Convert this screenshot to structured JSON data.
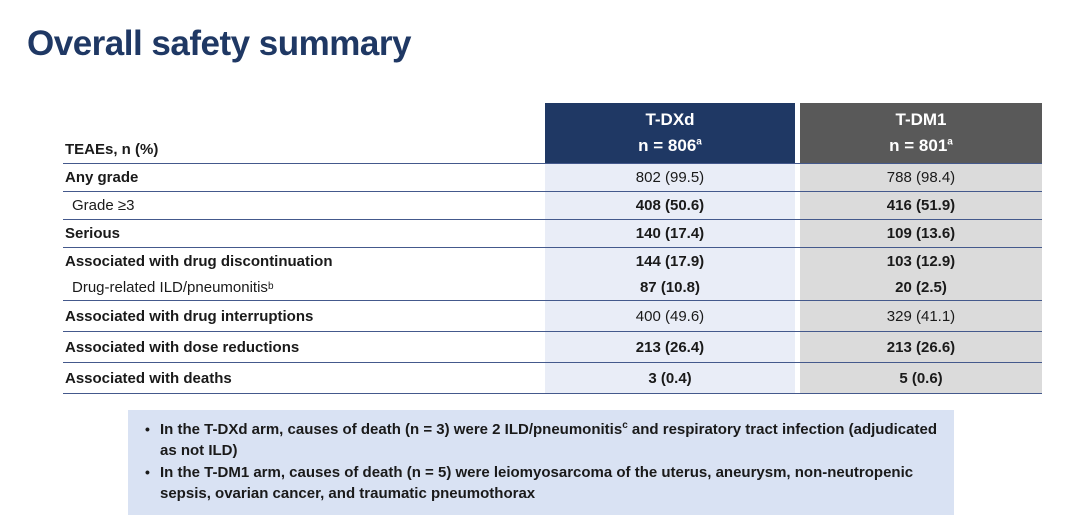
{
  "slide": {
    "title": "Overall safety summary"
  },
  "table": {
    "corner_label": "TEAEs, n (%)",
    "columns": [
      {
        "name": "T-DXd",
        "n": "n = 806",
        "n_sup": "a",
        "header_bg": "#1F3864",
        "cell_bg": "#E9EDF7"
      },
      {
        "name": "T-DM1",
        "n": "n = 801",
        "n_sup": "a",
        "header_bg": "#595959",
        "cell_bg": "#DBDBDB"
      }
    ],
    "rows": [
      {
        "label": "Any grade",
        "label_sup": "",
        "tdxd": "802 (99.5)",
        "tdm1": "788 (98.4)"
      },
      {
        "label": "Grade ≥3",
        "label_sup": "",
        "tdxd": "408 (50.6)",
        "tdm1": "416 (51.9)"
      },
      {
        "label": "Serious",
        "label_sup": "",
        "tdxd": "140 (17.4)",
        "tdm1": "109 (13.6)"
      },
      {
        "label": "Associated with drug discontinuation",
        "label_sup": "",
        "tdxd": "144 (17.9)",
        "tdm1": "103 (12.9)"
      },
      {
        "label": "Drug-related ILD/pneumonitis",
        "label_sup": "b",
        "tdxd": "87 (10.8)",
        "tdm1": "20 (2.5)"
      },
      {
        "label": "Associated with drug interruptions",
        "label_sup": "",
        "tdxd": "400 (49.6)",
        "tdm1": "329 (41.1)"
      },
      {
        "label": "Associated with dose reductions",
        "label_sup": "",
        "tdxd": "213 (26.4)",
        "tdm1": "213 (26.6)"
      },
      {
        "label": "Associated with deaths",
        "label_sup": "",
        "tdxd": "3 (0.4)",
        "tdm1": "5 (0.6)"
      }
    ]
  },
  "callout": {
    "bg": "#D9E2F3",
    "bullet_glyph": "•",
    "bullets": [
      {
        "pre": "In the T-DXd arm, causes of death (n = 3) were 2 ILD/pneumonitis",
        "sup": "c",
        "post": " and respiratory tract infection (adjudicated as not ILD)"
      },
      {
        "pre": "In the T-DM1 arm, causes of death (n = 5) were leiomyosarcoma of the uterus, aneurysm, non-neutropenic sepsis, ovarian cancer, and traumatic pneumothorax",
        "sup": "",
        "post": ""
      }
    ]
  }
}
